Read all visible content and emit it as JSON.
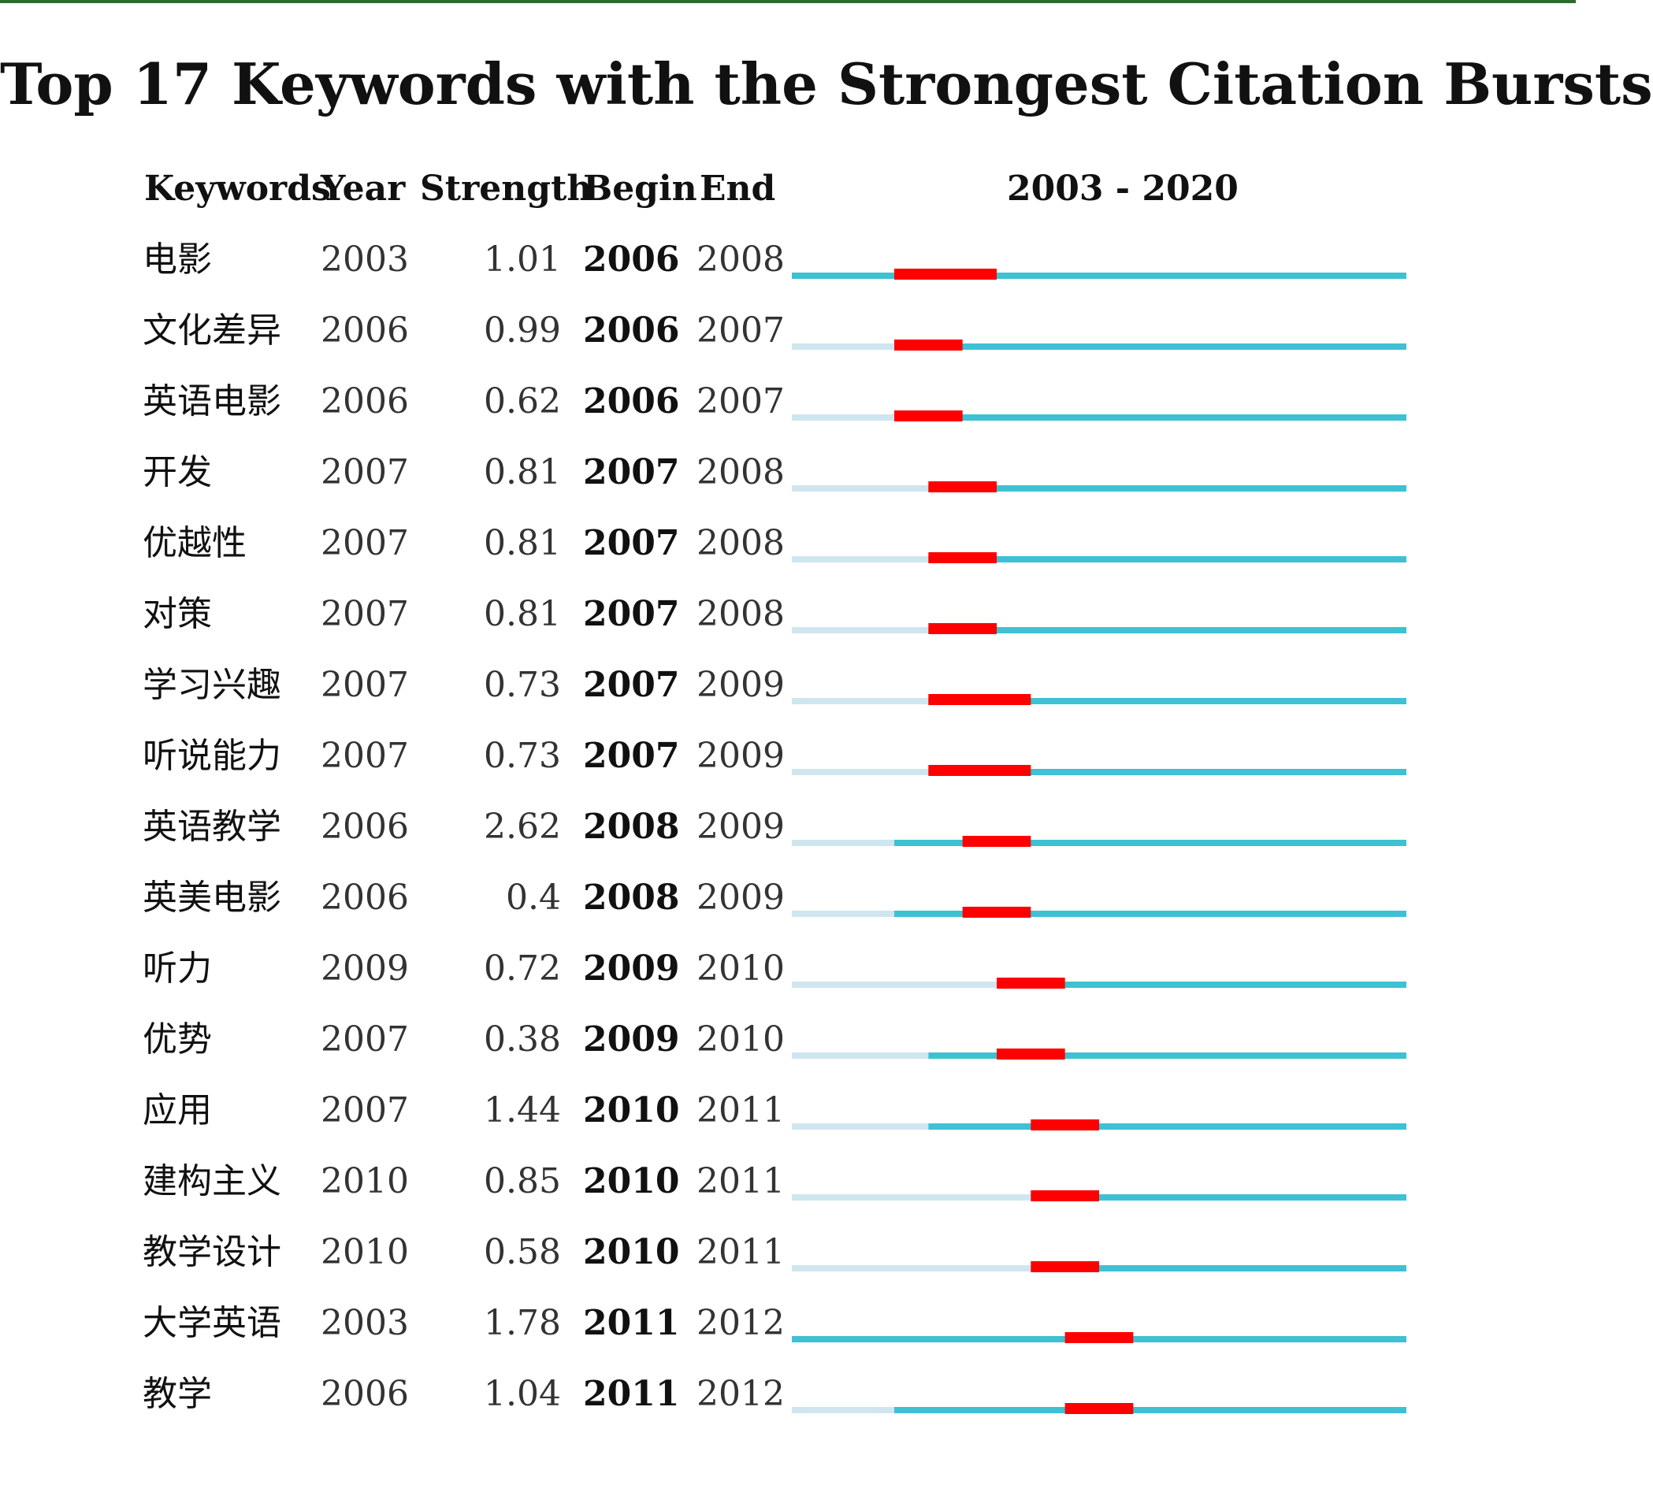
{
  "chart_data": {
    "type": "table",
    "title": "Top 17 Keywords with the Strongest Citation Bursts",
    "columns": [
      "Keywords",
      "Year",
      "Strength",
      "Begin",
      "End"
    ],
    "timeline_label": "2003 - 2020",
    "range": [
      2003,
      2020
    ],
    "colors": {
      "burst": "#ff0000",
      "active": "#3ec1d3",
      "inactive": "#cfe6f0"
    },
    "rows": [
      {
        "keyword": "电影",
        "year": "2003",
        "strength": "1.01",
        "begin": "2006",
        "end": "2008"
      },
      {
        "keyword": "文化差异",
        "year": "2006",
        "strength": "0.99",
        "begin": "2006",
        "end": "2007"
      },
      {
        "keyword": "英语电影",
        "year": "2006",
        "strength": "0.62",
        "begin": "2006",
        "end": "2007"
      },
      {
        "keyword": "开发",
        "year": "2007",
        "strength": "0.81",
        "begin": "2007",
        "end": "2008"
      },
      {
        "keyword": "优越性",
        "year": "2007",
        "strength": "0.81",
        "begin": "2007",
        "end": "2008"
      },
      {
        "keyword": "对策",
        "year": "2007",
        "strength": "0.81",
        "begin": "2007",
        "end": "2008"
      },
      {
        "keyword": "学习兴趣",
        "year": "2007",
        "strength": "0.73",
        "begin": "2007",
        "end": "2009"
      },
      {
        "keyword": "听说能力",
        "year": "2007",
        "strength": "0.73",
        "begin": "2007",
        "end": "2009"
      },
      {
        "keyword": "英语教学",
        "year": "2006",
        "strength": "2.62",
        "begin": "2008",
        "end": "2009"
      },
      {
        "keyword": "英美电影",
        "year": "2006",
        "strength": "0.4",
        "begin": "2008",
        "end": "2009"
      },
      {
        "keyword": "听力",
        "year": "2009",
        "strength": "0.72",
        "begin": "2009",
        "end": "2010"
      },
      {
        "keyword": "优势",
        "year": "2007",
        "strength": "0.38",
        "begin": "2009",
        "end": "2010"
      },
      {
        "keyword": "应用",
        "year": "2007",
        "strength": "1.44",
        "begin": "2010",
        "end": "2011"
      },
      {
        "keyword": "建构主义",
        "year": "2010",
        "strength": "0.85",
        "begin": "2010",
        "end": "2011"
      },
      {
        "keyword": "教学设计",
        "year": "2010",
        "strength": "0.58",
        "begin": "2010",
        "end": "2011"
      },
      {
        "keyword": "大学英语",
        "year": "2003",
        "strength": "1.78",
        "begin": "2011",
        "end": "2012"
      },
      {
        "keyword": "教学",
        "year": "2006",
        "strength": "1.04",
        "begin": "2011",
        "end": "2012"
      }
    ]
  }
}
